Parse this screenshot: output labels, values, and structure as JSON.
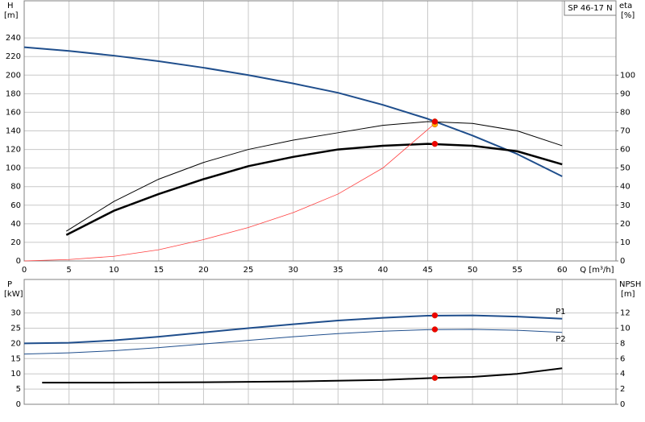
{
  "chart_data": [
    {
      "type": "line",
      "annotation": "SP 46-17 N",
      "xlabel": "Q [m³/h]",
      "ylabel": "H",
      "yunit": "[m]",
      "y2label": "eta",
      "y2unit": "[%]",
      "xlim": [
        0,
        66
      ],
      "xticks": [
        0,
        5,
        10,
        15,
        20,
        25,
        30,
        35,
        40,
        45,
        50,
        55,
        60
      ],
      "ylim": [
        0,
        280
      ],
      "yticks": [
        0,
        20,
        40,
        60,
        80,
        100,
        120,
        140,
        160,
        180,
        200,
        220,
        240
      ],
      "y2lim": [
        0,
        140
      ],
      "y2ticks": [
        0,
        10,
        20,
        30,
        40,
        50,
        60,
        70,
        80,
        90,
        100
      ],
      "grid": true,
      "show_xtick_labels": true,
      "series": [
        {
          "color": "#1f4e8c",
          "linewidth": 2,
          "axis": "y",
          "x": [
            0,
            5,
            10,
            15,
            20,
            25,
            30,
            35,
            40,
            45,
            50,
            55,
            60
          ],
          "values": [
            230,
            226,
            221,
            215,
            208,
            200,
            191,
            181,
            168,
            153,
            135,
            115,
            91
          ]
        },
        {
          "color": "#000000",
          "linewidth": 1,
          "axis": "y2",
          "x": [
            4.7,
            10,
            15,
            20,
            25,
            30,
            35,
            40,
            45,
            50,
            55,
            60
          ],
          "values": [
            16,
            32,
            44,
            53,
            60,
            65,
            69,
            73,
            75,
            74,
            70,
            62
          ]
        },
        {
          "color": "#000000",
          "linewidth": 2.5,
          "axis": "y2",
          "x": [
            4.7,
            10,
            15,
            20,
            25,
            30,
            35,
            40,
            45,
            50,
            55,
            60
          ],
          "values": [
            14,
            27,
            36,
            44,
            51,
            56,
            60,
            62,
            63,
            62,
            59,
            52
          ]
        },
        {
          "color": "#ff4040",
          "linewidth": 0.8,
          "axis": "y",
          "x": [
            0,
            5,
            10,
            15,
            20,
            25,
            30,
            35,
            40,
            45.8
          ],
          "values": [
            0,
            1.5,
            5,
            12,
            23,
            36,
            52,
            72,
            100,
            148
          ]
        }
      ],
      "points": [
        {
          "x": 45.8,
          "y": 147,
          "axis": "y",
          "color": "#ffb400"
        },
        {
          "x": 45.8,
          "y": 150,
          "axis": "y",
          "color": "#ee0000"
        },
        {
          "x": 45.8,
          "y": 75,
          "axis": "y2",
          "color": "#ee0000"
        },
        {
          "x": 45.8,
          "y": 63,
          "axis": "y2",
          "color": "#ee0000"
        }
      ]
    },
    {
      "type": "line",
      "ylabel": "P",
      "yunit": "[kW]",
      "y2label": "NPSH",
      "y2unit": "[m]",
      "xlim": [
        0,
        66
      ],
      "xticks": [
        0,
        5,
        10,
        15,
        20,
        25,
        30,
        35,
        40,
        45,
        50,
        55,
        60
      ],
      "ylim": [
        0,
        41
      ],
      "yticks": [
        0,
        5,
        10,
        15,
        20,
        25,
        30
      ],
      "y2lim": [
        0,
        16.4
      ],
      "y2ticks": [
        0,
        2,
        4,
        6,
        8,
        10,
        12
      ],
      "grid": true,
      "show_xtick_labels": false,
      "series": [
        {
          "name": "P1",
          "color": "#1f4e8c",
          "linewidth": 2,
          "axis": "y",
          "x": [
            0,
            5,
            10,
            15,
            20,
            25,
            30,
            35,
            40,
            45,
            50,
            55,
            60
          ],
          "values": [
            20,
            20.2,
            21,
            22.2,
            23.6,
            25,
            26.3,
            27.5,
            28.4,
            29.1,
            29.2,
            28.8,
            28.1
          ]
        },
        {
          "name": "P2",
          "color": "#1f4e8c",
          "linewidth": 1,
          "axis": "y",
          "x": [
            0,
            5,
            10,
            15,
            20,
            25,
            30,
            35,
            40,
            45,
            50,
            55,
            60
          ],
          "values": [
            16.5,
            16.9,
            17.6,
            18.6,
            19.8,
            21,
            22.2,
            23.2,
            24,
            24.5,
            24.6,
            24.3,
            23.6
          ]
        },
        {
          "color": "#000000",
          "linewidth": 2,
          "axis": "y2",
          "x": [
            2,
            10,
            20,
            30,
            40,
            45.8,
            50,
            55,
            60
          ],
          "values": [
            2.84,
            2.85,
            2.9,
            3.0,
            3.2,
            3.47,
            3.6,
            4.0,
            4.74
          ]
        }
      ],
      "points": [
        {
          "x": 45.8,
          "y": 29.2,
          "axis": "y",
          "color": "#ee0000"
        },
        {
          "x": 45.8,
          "y": 24.6,
          "axis": "y",
          "color": "#ee0000"
        },
        {
          "x": 45.8,
          "y": 3.47,
          "axis": "y2",
          "color": "#ee0000"
        }
      ]
    }
  ]
}
